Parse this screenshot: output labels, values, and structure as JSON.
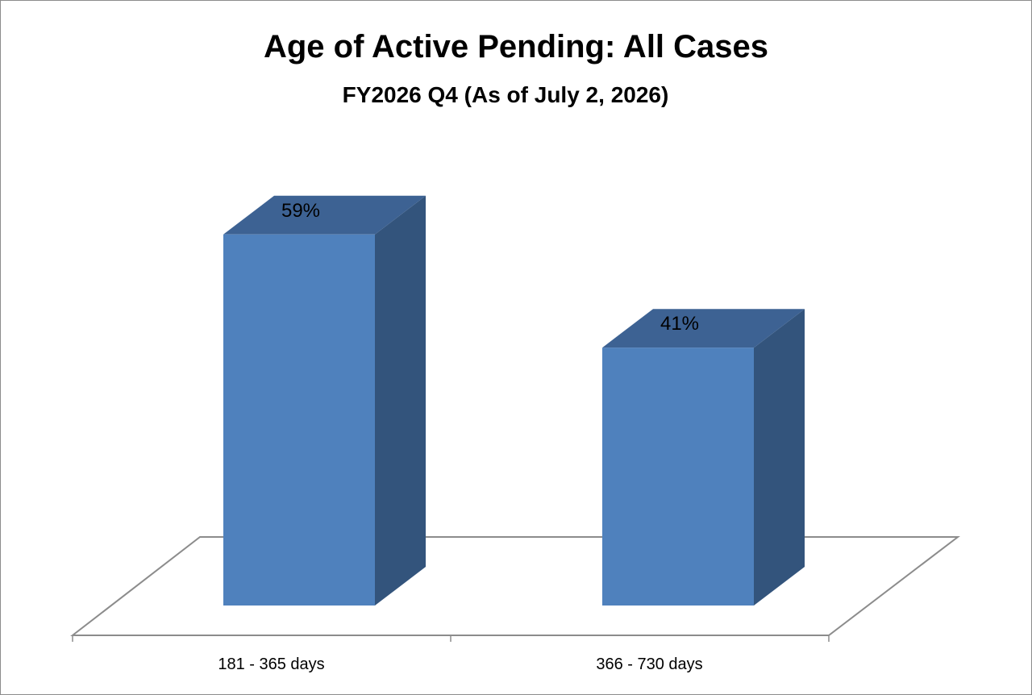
{
  "chart_data": {
    "type": "bar",
    "title": "Age of Active Pending: All Cases",
    "subtitle": "FY2026 Q4 (As of July 2, 2026)",
    "categories": [
      "181 - 365 days",
      "366 - 730 days"
    ],
    "values": [
      59,
      41
    ],
    "data_labels": [
      "59%",
      "41%"
    ],
    "unit": "%",
    "xlabel": "",
    "ylabel": "",
    "ylim": [
      0,
      70
    ],
    "grid": false,
    "legend": "none",
    "style": "3d-column",
    "colors": {
      "front": "#4f81bd",
      "side": "#33547c",
      "top": "#3d6293",
      "floor_line": "#8c8c8c"
    }
  }
}
